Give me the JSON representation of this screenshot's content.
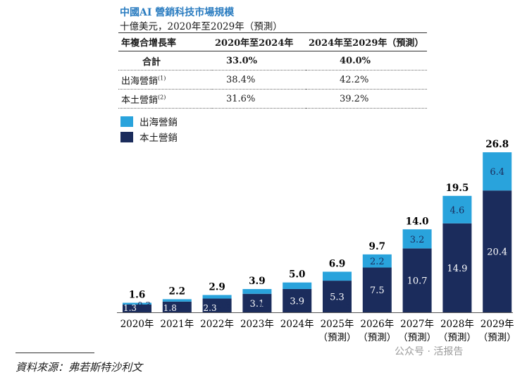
{
  "title": "中國AI 營銷科技市場規模",
  "subtitle": "十億美元，2020年至2029年（預測）",
  "table": {
    "headers": [
      "年複合增長率",
      "2020年至2024年",
      "2024年至2029年（預測）"
    ],
    "rows": [
      {
        "label": "合計",
        "v1": "33.0%",
        "v2": "40.0%"
      },
      {
        "label": "出海營銷",
        "sup": "(1)",
        "v1": "38.4%",
        "v2": "42.2%"
      },
      {
        "label": "本土營銷",
        "sup": "(2)",
        "v1": "31.6%",
        "v2": "39.2%"
      }
    ]
  },
  "legend": [
    {
      "label": "出海營銷",
      "color": "#29a3dc"
    },
    {
      "label": "本土營銷",
      "color": "#1b2c5c"
    }
  ],
  "chart_data": {
    "type": "bar",
    "stacked": true,
    "categories": [
      "2020年",
      "2021年",
      "2022年",
      "2023年",
      "2024年",
      "2025年\n（預測）",
      "2026年\n（預測）",
      "2027年\n（預測）",
      "2028年\n（預測）",
      "2029年\n（預測）"
    ],
    "series": [
      {
        "name": "本土營銷",
        "values": [
          "1.3",
          "1.8",
          "2.3",
          "3.1",
          "3.9",
          "5.3",
          "7.5",
          "10.7",
          "14.9",
          "20.4"
        ],
        "color": "#1b2c5c"
      },
      {
        "name": "出海營銷",
        "values": [
          "0.3",
          "0.4",
          "0.6",
          "0.8",
          "1.1",
          "1.5",
          "2.2",
          "3.2",
          "4.6",
          "6.4"
        ],
        "color": "#29a3dc"
      }
    ],
    "totals": [
      "1.6",
      "2.2",
      "2.9",
      "3.9",
      "5.0",
      "6.9",
      "9.7",
      "14.0",
      "19.5",
      "26.8"
    ],
    "ylim": [
      0,
      26.8
    ]
  },
  "source": "資料來源：弗若斯特沙利文",
  "watermark": "公众号 · 活报告"
}
